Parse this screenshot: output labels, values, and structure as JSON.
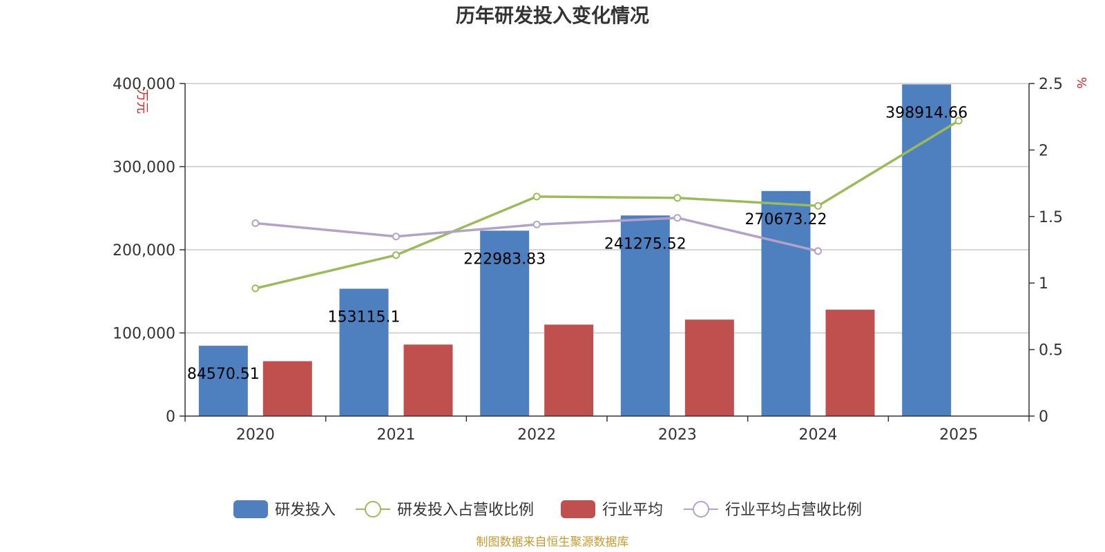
{
  "chart_data": {
    "type": "bar",
    "title": "历年研发投入变化情况",
    "categories": [
      "2020",
      "2021",
      "2022",
      "2023",
      "2024",
      "2025"
    ],
    "y_left": {
      "unit": "万元",
      "ylim": [
        0,
        400000
      ],
      "ticks": [
        "0",
        "100,000",
        "200,000",
        "300,000",
        "400,000"
      ],
      "tick_values": [
        0,
        100000,
        200000,
        300000,
        400000
      ]
    },
    "y_right": {
      "unit": "%",
      "ylim": [
        0,
        2.5
      ],
      "ticks": [
        "0",
        "0.5",
        "1",
        "1.5",
        "2",
        "2.5"
      ],
      "tick_values": [
        0,
        0.5,
        1,
        1.5,
        2,
        2.5
      ]
    },
    "series": [
      {
        "name": "研发投入",
        "kind": "bar",
        "axis": "left",
        "color": "#4e7fbe",
        "values": [
          84570.51,
          153115.1,
          222983.83,
          241275.52,
          270673.22,
          398914.66
        ],
        "labels": [
          "84570.51",
          "153115.1",
          "222983.83",
          "241275.52",
          "270673.22",
          "398914.66"
        ]
      },
      {
        "name": "研发投入占营收比例",
        "kind": "line",
        "axis": "right",
        "color": "#9bbb59",
        "values": [
          0.96,
          1.21,
          1.65,
          1.64,
          1.58,
          2.22
        ]
      },
      {
        "name": "行业平均",
        "kind": "bar",
        "axis": "left",
        "color": "#c0504d",
        "values": [
          66000,
          86000,
          110000,
          116000,
          128000,
          null
        ]
      },
      {
        "name": "行业平均占营收比例",
        "kind": "line",
        "axis": "right",
        "color": "#b3a2c7",
        "values": [
          1.45,
          1.35,
          1.44,
          1.49,
          1.24,
          null
        ]
      }
    ],
    "grid": true,
    "legend_position": "bottom"
  },
  "source_note": "制图数据来自恒生聚源数据库"
}
